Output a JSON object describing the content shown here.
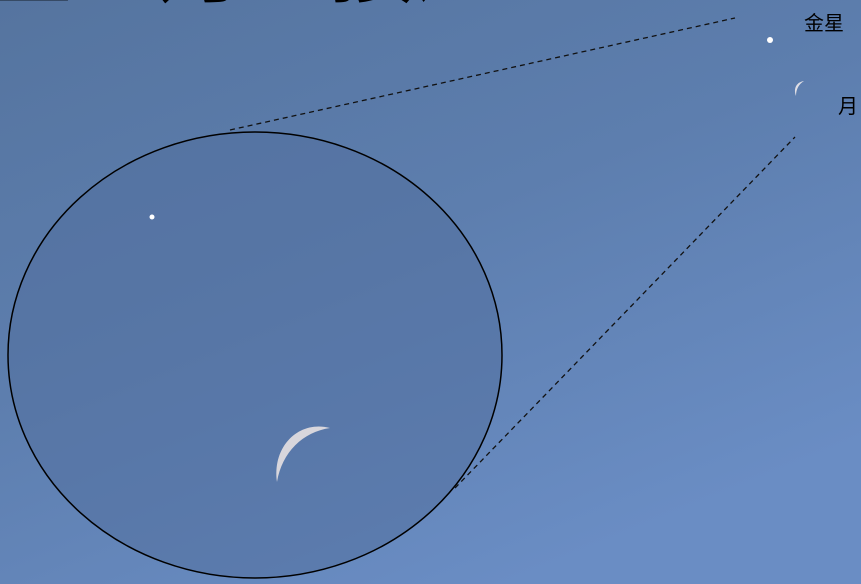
{
  "title": "金星と月が接近",
  "labels": {
    "venus": "金星",
    "moon": "月"
  }
}
